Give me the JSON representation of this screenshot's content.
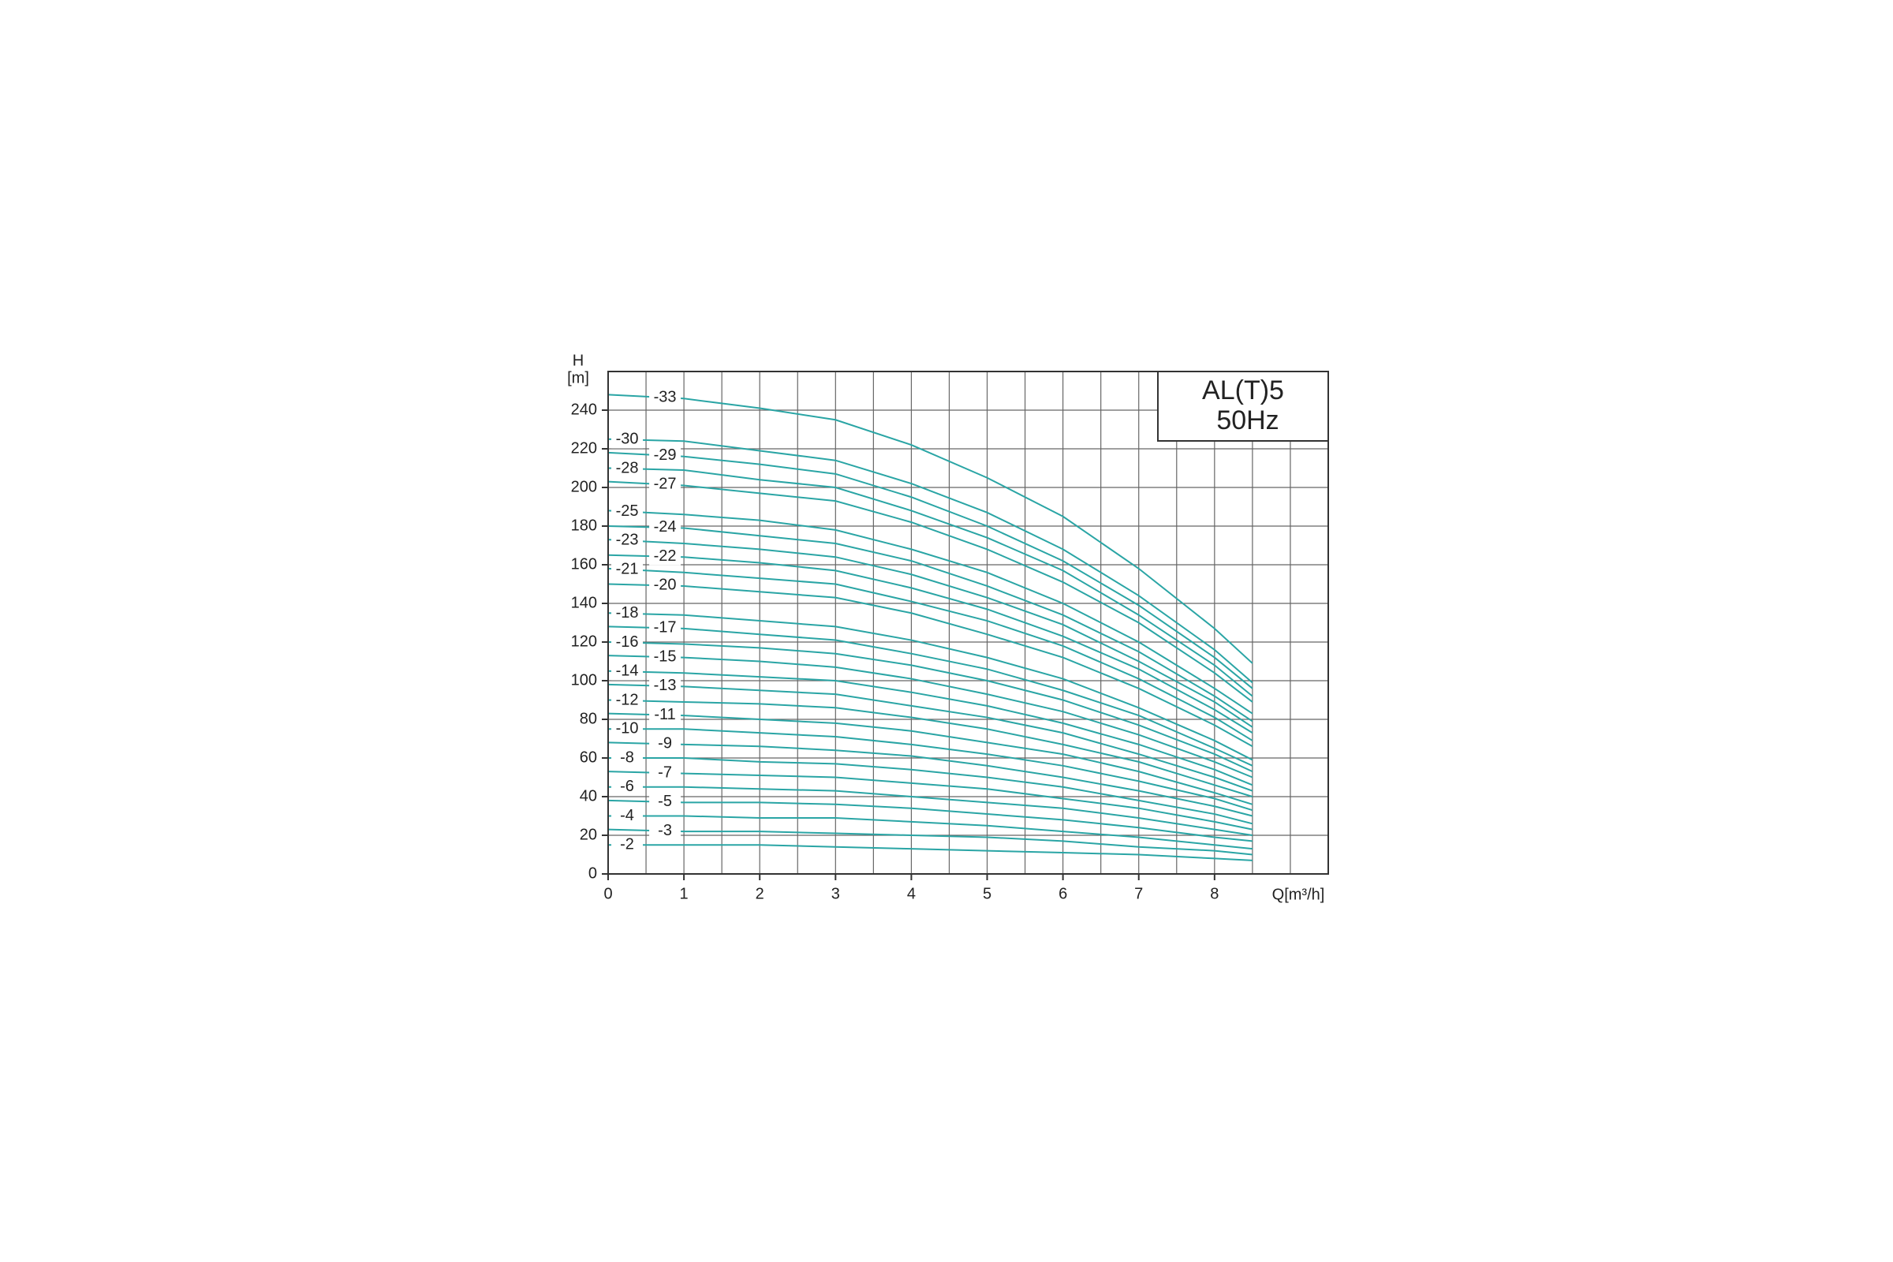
{
  "chart_data": {
    "type": "line",
    "y_label_top": "H",
    "y_label": "[m]",
    "x_label": "Q[m³/h]",
    "annotations": [
      "AL(T)5",
      "50Hz"
    ],
    "x": [
      0,
      1,
      2,
      3,
      4,
      5,
      6,
      7,
      8,
      8.5
    ],
    "xlim": [
      0,
      9.5
    ],
    "ylim": [
      0,
      260
    ],
    "xticks": [
      0,
      1,
      2,
      3,
      4,
      5,
      6,
      7,
      8
    ],
    "yticks": [
      0,
      20,
      40,
      60,
      80,
      100,
      120,
      140,
      160,
      180,
      200,
      220,
      240
    ],
    "xgrid": [
      0.5,
      1,
      1.5,
      2,
      2.5,
      3,
      3.5,
      4,
      4.5,
      5,
      5.5,
      6,
      6.5,
      7,
      7.5,
      8,
      8.5,
      9,
      9.5
    ],
    "ygrid": [
      20,
      40,
      60,
      80,
      100,
      120,
      140,
      160,
      180,
      200,
      220,
      240,
      260
    ],
    "grid": true,
    "color": "#2aa5a5",
    "series": [
      {
        "name": "-33",
        "values": [
          248,
          246,
          241,
          235,
          222,
          205,
          185,
          158,
          127,
          109
        ]
      },
      {
        "name": "-30",
        "values": [
          225,
          224,
          219,
          214,
          202,
          187,
          168,
          144,
          116,
          99
        ]
      },
      {
        "name": "-29",
        "values": [
          218,
          216,
          212,
          207,
          195,
          180,
          162,
          139,
          112,
          96
        ]
      },
      {
        "name": "-28",
        "values": [
          210,
          209,
          204,
          200,
          188,
          174,
          157,
          134,
          108,
          92
        ]
      },
      {
        "name": "-27",
        "values": [
          203,
          201,
          197,
          193,
          182,
          168,
          151,
          130,
          104,
          89
        ]
      },
      {
        "name": "-25",
        "values": [
          188,
          186,
          183,
          178,
          168,
          156,
          140,
          120,
          96,
          83
        ]
      },
      {
        "name": "-24",
        "values": [
          180,
          179,
          175,
          171,
          162,
          149,
          134,
          115,
          92,
          79
        ]
      },
      {
        "name": "-23",
        "values": [
          173,
          171,
          168,
          164,
          155,
          143,
          129,
          110,
          89,
          76
        ]
      },
      {
        "name": "-22",
        "values": [
          165,
          164,
          161,
          157,
          148,
          137,
          123,
          106,
          85,
          73
        ]
      },
      {
        "name": "-21",
        "values": [
          158,
          156,
          153,
          150,
          141,
          131,
          118,
          101,
          81,
          69
        ]
      },
      {
        "name": "-20",
        "values": [
          150,
          149,
          146,
          143,
          135,
          124,
          112,
          96,
          77,
          66
        ]
      },
      {
        "name": "-18",
        "values": [
          135,
          134,
          131,
          128,
          121,
          112,
          101,
          86,
          69,
          59
        ]
      },
      {
        "name": "-17",
        "values": [
          128,
          127,
          124,
          121,
          114,
          106,
          95,
          82,
          65,
          56
        ]
      },
      {
        "name": "-16",
        "values": [
          120,
          119,
          117,
          114,
          108,
          100,
          90,
          77,
          62,
          53
        ]
      },
      {
        "name": "-15",
        "values": [
          113,
          112,
          110,
          107,
          101,
          93,
          84,
          72,
          58,
          50
        ]
      },
      {
        "name": "-14",
        "values": [
          105,
          104,
          102,
          100,
          94,
          87,
          78,
          67,
          54,
          46
        ]
      },
      {
        "name": "-13",
        "values": [
          98,
          97,
          95,
          93,
          87,
          81,
          73,
          62,
          50,
          43
        ]
      },
      {
        "name": "-12",
        "values": [
          90,
          89,
          88,
          86,
          81,
          75,
          67,
          58,
          46,
          40
        ]
      },
      {
        "name": "-11",
        "values": [
          83,
          82,
          80,
          78,
          74,
          68,
          62,
          53,
          42,
          36
        ]
      },
      {
        "name": "-10",
        "values": [
          75,
          75,
          73,
          71,
          67,
          62,
          56,
          48,
          39,
          33
        ]
      },
      {
        "name": "-9",
        "values": [
          68,
          67,
          66,
          64,
          61,
          56,
          50,
          43,
          35,
          30
        ]
      },
      {
        "name": "-8",
        "values": [
          60,
          60,
          58,
          57,
          54,
          50,
          45,
          38,
          31,
          26
        ]
      },
      {
        "name": "-7",
        "values": [
          53,
          52,
          51,
          50,
          47,
          44,
          39,
          34,
          27,
          23
        ]
      },
      {
        "name": "-6",
        "values": [
          45,
          45,
          44,
          43,
          40,
          37,
          34,
          29,
          23,
          20
        ]
      },
      {
        "name": "-5",
        "values": [
          38,
          37,
          37,
          36,
          34,
          31,
          28,
          24,
          19,
          17
        ]
      },
      {
        "name": "-4",
        "values": [
          30,
          30,
          29,
          29,
          27,
          25,
          22,
          19,
          15,
          13
        ]
      },
      {
        "name": "-3",
        "values": [
          23,
          22,
          22,
          21,
          20,
          19,
          17,
          14,
          12,
          10
        ]
      },
      {
        "name": "-2",
        "values": [
          15,
          15,
          15,
          14,
          13,
          12,
          11,
          10,
          8,
          7
        ]
      }
    ]
  }
}
